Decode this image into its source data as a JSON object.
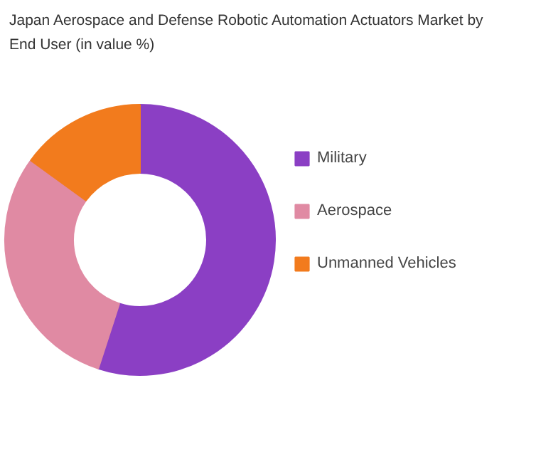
{
  "chart_data": {
    "type": "donut",
    "title": "Japan Aerospace and Defense Robotic Automation Actuators Market by End User (in value %)",
    "categories": [
      "Military",
      "Aerospace",
      "Unmanned Vehicles"
    ],
    "values": [
      55,
      30,
      15
    ],
    "colors": [
      "#8b3fc4",
      "#e08aa3",
      "#f27b1d"
    ],
    "legend": "right"
  }
}
